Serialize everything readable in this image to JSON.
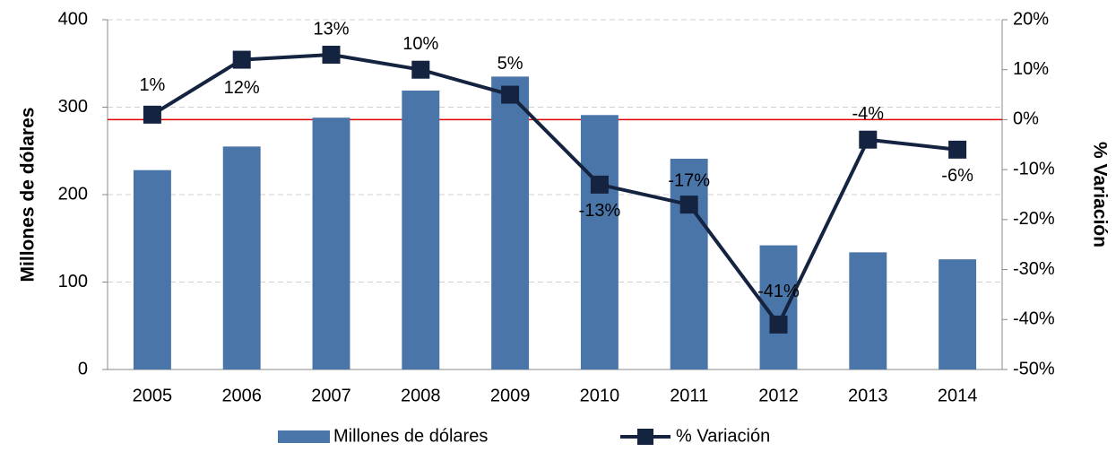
{
  "chart_data": {
    "type": "bar_line",
    "categories": [
      "2005",
      "2006",
      "2007",
      "2008",
      "2009",
      "2010",
      "2011",
      "2012",
      "2013",
      "2014"
    ],
    "series": [
      {
        "name": "Millones de dólares",
        "type": "bar",
        "color": "#4a75a9",
        "values": [
          228,
          255,
          288,
          319,
          335,
          291,
          241,
          142,
          134,
          126
        ]
      },
      {
        "name": "% Variación",
        "type": "line",
        "axis": "y2",
        "color": "#14233f",
        "values": [
          1,
          12,
          13,
          10,
          5,
          -13,
          -17,
          -41,
          -4,
          -6
        ],
        "value_labels": [
          "1%",
          "12%",
          "13%",
          "10%",
          "5%",
          "-13%",
          "-17%",
          "-41%",
          "-4%",
          "-6%"
        ]
      }
    ],
    "ylabel": "Millones de dólares",
    "y2label": "% Variación",
    "ylim": [
      0,
      400
    ],
    "yticks": [
      0,
      100,
      200,
      300,
      400
    ],
    "y2lim": [
      -50,
      20
    ],
    "y2ticks": [
      {
        "value": -50,
        "label": "-50%"
      },
      {
        "value": -40,
        "label": "-40%"
      },
      {
        "value": -30,
        "label": "-30%"
      },
      {
        "value": -20,
        "label": "-20%"
      },
      {
        "value": -10,
        "label": "-10%"
      },
      {
        "value": 0,
        "label": "0%"
      },
      {
        "value": 10,
        "label": "10%"
      },
      {
        "value": 20,
        "label": "20%"
      }
    ],
    "reference_line": {
      "axis": "y2",
      "value": 0,
      "color": "#e00000"
    },
    "grid": true,
    "legend": "bottom"
  }
}
